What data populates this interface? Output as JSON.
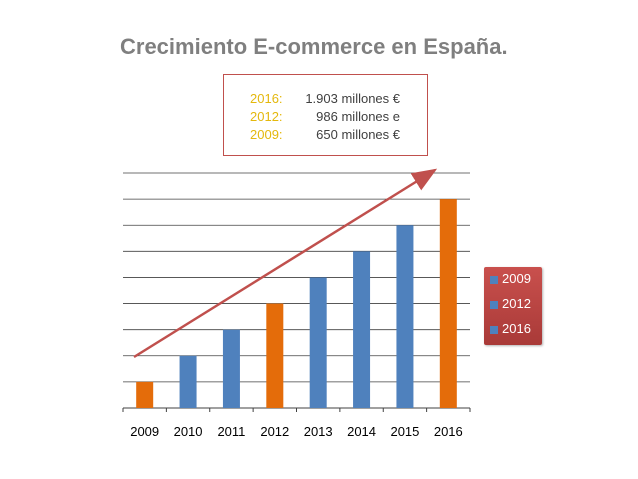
{
  "title": "Crecimiento E-commerce en España",
  "title_suffix": ".",
  "info": [
    {
      "year": "2016:",
      "value": "1.903 millones €"
    },
    {
      "year": "2012:",
      "value": "986 millones e"
    },
    {
      "year": "2009:",
      "value": "650 millones €"
    }
  ],
  "legend": [
    "2009",
    "2012",
    "2016"
  ],
  "colors": {
    "blue": "#4f81bd",
    "orange": "#e46c0a",
    "arrow": "#c0504d",
    "grid": "#404040",
    "info_year": "#e4b80d"
  },
  "chart_data": {
    "type": "bar",
    "categories": [
      "2009",
      "2010",
      "2011",
      "2012",
      "2013",
      "2014",
      "2015",
      "2016"
    ],
    "values": [
      1,
      2,
      3,
      4,
      5,
      6,
      7,
      8
    ],
    "highlight": [
      "2009",
      "2012",
      "2016"
    ],
    "ylim": [
      0,
      9
    ],
    "grid": true,
    "legend_position": "right",
    "annotation": "trend arrow rising from 2009 to 2016"
  }
}
